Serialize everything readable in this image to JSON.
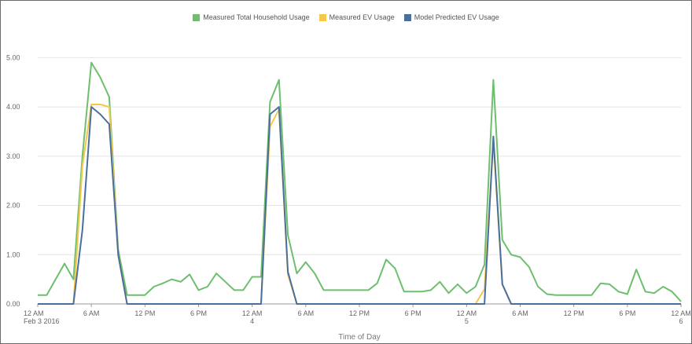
{
  "chart_data": {
    "type": "line",
    "xlabel": "Time of Day",
    "ylabel": "",
    "ylim": [
      0,
      5.5
    ],
    "grid": "horizontal",
    "legend_position": "top-center",
    "y_ticks": [
      "0.00",
      "1.00",
      "2.00",
      "3.00",
      "4.00",
      "5.00"
    ],
    "x_ticks": [
      {
        "h": 0,
        "lines": [
          "12 AM",
          "Feb 3 2016"
        ]
      },
      {
        "h": 6,
        "lines": [
          "6 AM"
        ]
      },
      {
        "h": 12,
        "lines": [
          "12 PM"
        ]
      },
      {
        "h": 18,
        "lines": [
          "6 PM"
        ]
      },
      {
        "h": 24,
        "lines": [
          "12 AM",
          "4"
        ]
      },
      {
        "h": 30,
        "lines": [
          "6 AM"
        ]
      },
      {
        "h": 36,
        "lines": [
          "12 PM"
        ]
      },
      {
        "h": 42,
        "lines": [
          "6 PM"
        ]
      },
      {
        "h": 48,
        "lines": [
          "12 AM",
          "5"
        ]
      },
      {
        "h": 54,
        "lines": [
          "6 AM"
        ]
      },
      {
        "h": 60,
        "lines": [
          "12 PM"
        ]
      },
      {
        "h": 66,
        "lines": [
          "6 PM"
        ]
      },
      {
        "h": 72,
        "lines": [
          "12 AM",
          "6"
        ]
      }
    ],
    "series": [
      {
        "name": "Measured Total Household Usage",
        "color": "#6dbf6d",
        "points": [
          [
            0,
            0.18
          ],
          [
            1,
            0.18
          ],
          [
            2,
            0.5
          ],
          [
            3,
            0.82
          ],
          [
            4,
            0.5
          ],
          [
            5,
            3.0
          ],
          [
            6,
            4.9
          ],
          [
            7,
            4.6
          ],
          [
            8,
            4.2
          ],
          [
            9,
            1.1
          ],
          [
            10,
            0.18
          ],
          [
            11,
            0.18
          ],
          [
            12,
            0.18
          ],
          [
            13,
            0.35
          ],
          [
            14,
            0.42
          ],
          [
            15,
            0.5
          ],
          [
            16,
            0.45
          ],
          [
            17,
            0.6
          ],
          [
            18,
            0.28
          ],
          [
            19,
            0.35
          ],
          [
            20,
            0.62
          ],
          [
            21,
            0.45
          ],
          [
            22,
            0.28
          ],
          [
            23,
            0.28
          ],
          [
            24,
            0.55
          ],
          [
            25,
            0.55
          ],
          [
            26,
            4.1
          ],
          [
            27,
            4.55
          ],
          [
            28,
            1.4
          ],
          [
            29,
            0.62
          ],
          [
            30,
            0.85
          ],
          [
            31,
            0.62
          ],
          [
            32,
            0.28
          ],
          [
            33,
            0.28
          ],
          [
            34,
            0.28
          ],
          [
            35,
            0.28
          ],
          [
            36,
            0.28
          ],
          [
            37,
            0.28
          ],
          [
            38,
            0.42
          ],
          [
            39,
            0.9
          ],
          [
            40,
            0.72
          ],
          [
            41,
            0.25
          ],
          [
            42,
            0.25
          ],
          [
            43,
            0.25
          ],
          [
            44,
            0.28
          ],
          [
            45,
            0.45
          ],
          [
            46,
            0.22
          ],
          [
            47,
            0.4
          ],
          [
            48,
            0.22
          ],
          [
            49,
            0.35
          ],
          [
            50,
            0.8
          ],
          [
            51,
            4.55
          ],
          [
            52,
            1.3
          ],
          [
            53,
            1.0
          ],
          [
            54,
            0.95
          ],
          [
            55,
            0.75
          ],
          [
            56,
            0.35
          ],
          [
            57,
            0.2
          ],
          [
            58,
            0.18
          ],
          [
            59,
            0.18
          ],
          [
            60,
            0.18
          ],
          [
            61,
            0.18
          ],
          [
            62,
            0.18
          ],
          [
            63,
            0.42
          ],
          [
            64,
            0.4
          ],
          [
            65,
            0.25
          ],
          [
            66,
            0.2
          ],
          [
            67,
            0.7
          ],
          [
            68,
            0.25
          ],
          [
            69,
            0.22
          ],
          [
            70,
            0.35
          ],
          [
            71,
            0.25
          ],
          [
            72,
            0.05
          ]
        ]
      },
      {
        "name": "Measured EV Usage",
        "color": "#f5c84c",
        "points": [
          [
            0,
            0
          ],
          [
            4,
            0
          ],
          [
            5,
            2.8
          ],
          [
            6,
            4.05
          ],
          [
            7,
            4.05
          ],
          [
            8,
            4.0
          ],
          [
            9,
            1.0
          ],
          [
            10,
            0
          ],
          [
            25,
            0
          ],
          [
            26,
            3.6
          ],
          [
            27,
            3.95
          ],
          [
            28,
            0.6
          ],
          [
            29,
            0
          ],
          [
            49,
            0
          ],
          [
            50,
            0.3
          ],
          [
            51,
            3.3
          ],
          [
            52,
            0.4
          ],
          [
            53,
            0
          ],
          [
            72,
            0
          ]
        ]
      },
      {
        "name": "Model Predicted EV Usage",
        "color": "#4a6f9c",
        "points": [
          [
            0,
            0
          ],
          [
            4,
            0
          ],
          [
            5,
            1.5
          ],
          [
            6,
            4.0
          ],
          [
            7,
            3.85
          ],
          [
            8,
            3.65
          ],
          [
            9,
            1.0
          ],
          [
            10,
            0
          ],
          [
            25,
            0
          ],
          [
            26,
            3.85
          ],
          [
            27,
            4.0
          ],
          [
            28,
            0.65
          ],
          [
            29,
            0
          ],
          [
            50,
            0
          ],
          [
            51,
            3.4
          ],
          [
            52,
            0.4
          ],
          [
            53,
            0
          ],
          [
            72,
            0
          ]
        ]
      }
    ]
  }
}
